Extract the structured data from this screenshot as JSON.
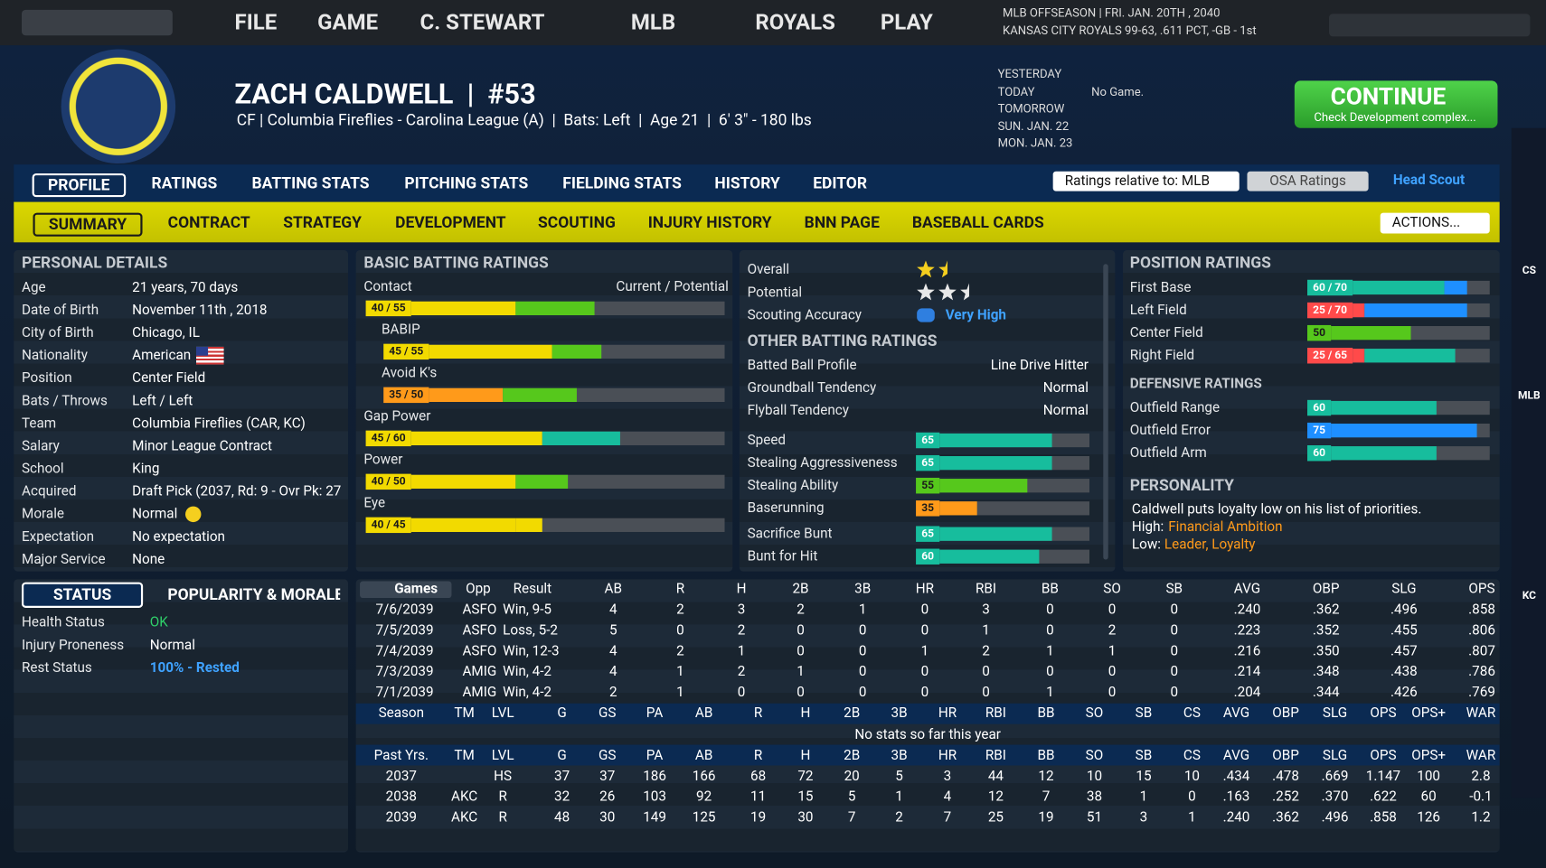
{
  "nav": {
    "menu": [
      "FILE",
      "GAME",
      "C. STEWART",
      "MLB",
      "ROYALS",
      "PLAY"
    ],
    "league_status": "MLB OFFSEASON  |  FRI. JAN. 20TH , 2040",
    "team_status": "KANSAS CITY ROYALS  99-63, .611 PCT, -GB - 1st"
  },
  "player": {
    "name": "ZACH CALDWELL  |  #53",
    "details": "CF | Columbia Fireflies - Carolina League (A)  |  Bats: Left  |  Age 21  |  6' 3\" - 180 lbs"
  },
  "schedule": {
    "days": [
      "YESTERDAY",
      "TODAY",
      "TOMORROW",
      "SUN. JAN. 22",
      "MON. JAN. 23"
    ],
    "today_result": "No Game."
  },
  "continue": {
    "label": "CONTINUE",
    "note": "Check Development complex..."
  },
  "tabs": {
    "main": [
      "PROFILE",
      "RATINGS",
      "BATTING STATS",
      "PITCHING STATS",
      "FIELDING STATS",
      "HISTORY",
      "EDITOR"
    ],
    "sub": [
      "SUMMARY",
      "CONTRACT",
      "STRATEGY",
      "DEVELOPMENT",
      "SCOUTING",
      "INJURY HISTORY",
      "BNN PAGE",
      "BASEBALL CARDS"
    ],
    "ratings_relative": "Ratings relative to: MLB",
    "osa": "OSA Ratings",
    "scout": "Head Scout",
    "actions": "ACTIONS..."
  },
  "personal": {
    "title": "PERSONAL DETAILS",
    "rows": [
      [
        "Age",
        "21 years, 70 days"
      ],
      [
        "Date of Birth",
        "November 11th , 2018"
      ],
      [
        "City of Birth",
        "Chicago, IL"
      ],
      [
        "Nationality",
        "American"
      ],
      [
        "Position",
        "Center Field"
      ],
      [
        "Bats / Throws",
        "Left / Left"
      ],
      [
        "Team",
        "Columbia Fireflies (CAR, KC)"
      ],
      [
        "Salary",
        "Minor League Contract"
      ],
      [
        "School",
        "King"
      ],
      [
        "Acquired",
        "Draft Pick (2037, Rd: 9 - Ovr Pk: 27"
      ],
      [
        "Morale",
        "Normal"
      ],
      [
        "Expectation",
        "No expectation"
      ],
      [
        "Major Service",
        "None"
      ]
    ]
  },
  "batting": {
    "title": "BASIC BATTING RATINGS",
    "header": "Current / Potential",
    "xlim": [
      20,
      80
    ],
    "ratings": [
      {
        "name": "Contact",
        "current": 40,
        "potential": 55,
        "label": "40 / 55",
        "components": [
          {
            "name": "BABIP",
            "current": 45,
            "potential": 55,
            "label": "45 / 55"
          },
          {
            "name": "Avoid K's",
            "current": 35,
            "potential": 50,
            "label": "35 / 50"
          }
        ]
      },
      {
        "name": "Gap Power",
        "current": 45,
        "potential": 60,
        "label": "45 / 60"
      },
      {
        "name": "Power",
        "current": 40,
        "potential": 50,
        "label": "40 / 50"
      },
      {
        "name": "Eye",
        "current": 40,
        "potential": 45,
        "label": "40 / 45"
      }
    ]
  },
  "summary": {
    "overall_label": "Overall",
    "overall": 1.5,
    "potential_label": "Potential",
    "potential": 2.5,
    "accuracy_label": "Scouting Accuracy",
    "accuracy": "Very High",
    "other_title": "OTHER BATTING RATINGS",
    "profile": [
      [
        "Batted Ball Profile",
        "Line Drive Hitter"
      ],
      [
        "Groundball Tendency",
        "Normal"
      ],
      [
        "Flyball Tendency",
        "Normal"
      ]
    ],
    "xlim": [
      20,
      80
    ],
    "ratings": [
      {
        "name": "Speed",
        "value": 65
      },
      {
        "name": "Stealing Aggressiveness",
        "value": 65
      },
      {
        "name": "Stealing Ability",
        "value": 55
      },
      {
        "name": "Baserunning",
        "value": 35
      },
      {
        "name": "Sacrifice Bunt",
        "value": 65
      },
      {
        "name": "Bunt for Hit",
        "value": 60
      }
    ]
  },
  "positions": {
    "title": "POSITION RATINGS",
    "xlim": [
      20,
      80
    ],
    "ratings": [
      {
        "name": "First Base",
        "current": 60,
        "potential": 70,
        "label": "60 / 70"
      },
      {
        "name": "Left Field",
        "current": 25,
        "potential": 70,
        "label": "25 / 70"
      },
      {
        "name": "Center Field",
        "current": 50
      },
      {
        "name": "Right Field",
        "current": 25,
        "potential": 65,
        "label": "25 / 65"
      }
    ],
    "defensive_title": "DEFENSIVE RATINGS",
    "defensive": [
      {
        "name": "Outfield Range",
        "value": 60
      },
      {
        "name": "Outfield Error",
        "value": 75
      },
      {
        "name": "Outfield Arm",
        "value": 60
      }
    ]
  },
  "personality": {
    "title": "PERSONALITY",
    "text": "Caldwell puts loyalty low on his list of priorities.",
    "high_label": "High:",
    "high": "Financial Ambition",
    "low_label": "Low:",
    "low": "Leader, Loyalty"
  },
  "status": {
    "tabs": [
      "STATUS",
      "POPULARITY & MORALE"
    ],
    "rows": [
      [
        "Health Status",
        "OK"
      ],
      [
        "Injury Proneness",
        "Normal"
      ],
      [
        "Rest Status",
        "100% - Rested"
      ]
    ]
  },
  "games": {
    "columns": [
      "Games",
      "Opp",
      "Result",
      "AB",
      "R",
      "H",
      "2B",
      "3B",
      "HR",
      "RBI",
      "BB",
      "SO",
      "SB",
      "AVG",
      "OBP",
      "SLG",
      "OPS"
    ],
    "rows": [
      [
        "7/6/2039",
        "ASFO",
        "Win, 9-5",
        "4",
        "2",
        "3",
        "2",
        "1",
        "0",
        "3",
        "0",
        "0",
        "0",
        ".240",
        ".362",
        ".496",
        ".858"
      ],
      [
        "7/5/2039",
        "ASFO",
        "Loss, 5-2",
        "5",
        "0",
        "2",
        "0",
        "0",
        "0",
        "1",
        "0",
        "2",
        "0",
        ".223",
        ".352",
        ".455",
        ".806"
      ],
      [
        "7/4/2039",
        "ASFO",
        "Win, 12-3",
        "4",
        "2",
        "1",
        "0",
        "0",
        "1",
        "2",
        "1",
        "1",
        "0",
        ".216",
        ".350",
        ".457",
        ".807"
      ],
      [
        "7/3/2039",
        "AMIG",
        "Win, 4-2",
        "4",
        "1",
        "2",
        "1",
        "0",
        "0",
        "0",
        "0",
        "0",
        "0",
        ".214",
        ".348",
        ".438",
        ".786"
      ],
      [
        "7/1/2039",
        "AMIG",
        "Win, 4-2",
        "2",
        "1",
        "0",
        "0",
        "0",
        "0",
        "0",
        "1",
        "0",
        "0",
        ".204",
        ".344",
        ".426",
        ".769"
      ]
    ]
  },
  "season": {
    "columns": [
      "Season",
      "TM",
      "LVL",
      "G",
      "GS",
      "PA",
      "AB",
      "R",
      "H",
      "2B",
      "3B",
      "HR",
      "RBI",
      "BB",
      "SO",
      "SB",
      "CS",
      "AVG",
      "OBP",
      "SLG",
      "OPS",
      "OPS+",
      "WAR"
    ],
    "empty": "No stats so far this year"
  },
  "past": {
    "columns": [
      "Past Yrs.",
      "TM",
      "LVL",
      "G",
      "GS",
      "PA",
      "AB",
      "R",
      "H",
      "2B",
      "3B",
      "HR",
      "RBI",
      "BB",
      "SO",
      "SB",
      "CS",
      "AVG",
      "OBP",
      "SLG",
      "OPS",
      "OPS+",
      "WAR"
    ],
    "rows": [
      [
        "2037",
        null,
        "HS",
        "37",
        "37",
        "186",
        "166",
        "68",
        "72",
        "20",
        "5",
        "3",
        "44",
        "12",
        "10",
        "15",
        "10",
        ".434",
        ".478",
        ".669",
        "1.147",
        "100",
        "2.8"
      ],
      [
        "2038",
        "AKC",
        "R",
        "32",
        "26",
        "103",
        "92",
        "11",
        "15",
        "5",
        "1",
        "4",
        "12",
        "7",
        "38",
        "1",
        "0",
        ".163",
        ".252",
        ".370",
        ".622",
        "60",
        "-0.1"
      ],
      [
        "2039",
        "AKC",
        "R",
        "48",
        "30",
        "149",
        "125",
        "19",
        "30",
        "7",
        "2",
        "7",
        "25",
        "19",
        "51",
        "3",
        "1",
        ".240",
        ".362",
        ".496",
        ".858",
        "126",
        "1.2"
      ]
    ]
  },
  "sidebar": [
    "CS",
    "MLB",
    "KC"
  ]
}
